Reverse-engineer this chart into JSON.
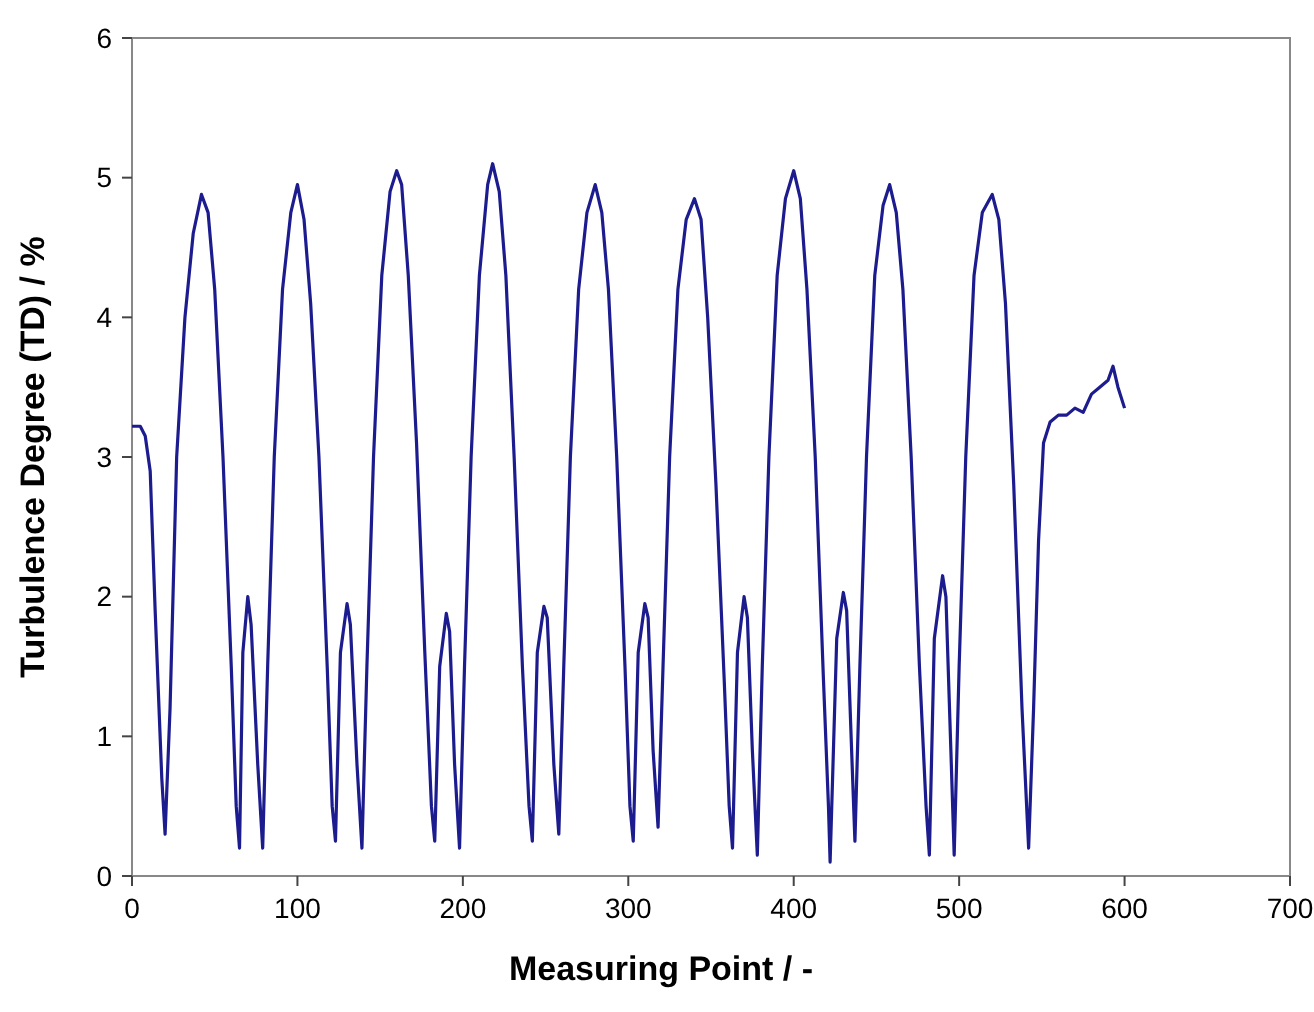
{
  "chart_data": {
    "type": "line",
    "xlabel": "Measuring Point / -",
    "ylabel": "Turbulence Degree (TD) / %",
    "xlim": [
      0,
      700
    ],
    "xticks": [
      0,
      100,
      200,
      300,
      400,
      500,
      600,
      700
    ],
    "ylim": [
      0,
      6
    ],
    "yticks": [
      0,
      1,
      2,
      3,
      4,
      5,
      6
    ],
    "grid": false,
    "marker": "none",
    "line_style": "solid",
    "series": [
      {
        "color": "#1c1c8e",
        "x": [
          0,
          5,
          8,
          11,
          14,
          18,
          20,
          23,
          27,
          32,
          37,
          42,
          46,
          50,
          55,
          60,
          63,
          65,
          67,
          70,
          72,
          76,
          79,
          82,
          86,
          91,
          96,
          100,
          104,
          108,
          113,
          118,
          121,
          123,
          126,
          130,
          132,
          136,
          139,
          142,
          146,
          151,
          156,
          160,
          163,
          167,
          172,
          177,
          181,
          183,
          186,
          190,
          192,
          195,
          198,
          201,
          205,
          210,
          215,
          218,
          222,
          226,
          231,
          236,
          240,
          242,
          245,
          249,
          251,
          255,
          258,
          261,
          265,
          270,
          275,
          280,
          284,
          288,
          293,
          298,
          301,
          303,
          306,
          310,
          312,
          315,
          318,
          321,
          325,
          330,
          335,
          340,
          344,
          348,
          353,
          358,
          361,
          363,
          366,
          370,
          372,
          375,
          378,
          381,
          385,
          390,
          395,
          400,
          404,
          408,
          413,
          418,
          421,
          422,
          426,
          430,
          432,
          435,
          437,
          440,
          444,
          449,
          454,
          458,
          462,
          466,
          471,
          476,
          480,
          482,
          485,
          490,
          492,
          495,
          497,
          500,
          504,
          509,
          514,
          520,
          524,
          528,
          533,
          538,
          542,
          545,
          548,
          551,
          555,
          560,
          565,
          570,
          575,
          580,
          585,
          590,
          593,
          596,
          600
        ],
        "values": [
          3.22,
          3.22,
          3.15,
          2.9,
          1.9,
          0.7,
          0.3,
          1.2,
          3.0,
          4.0,
          4.6,
          4.88,
          4.75,
          4.2,
          3.0,
          1.5,
          0.5,
          0.2,
          1.6,
          2.0,
          1.8,
          0.8,
          0.2,
          1.5,
          3.0,
          4.2,
          4.75,
          4.95,
          4.7,
          4.1,
          3.0,
          1.5,
          0.5,
          0.25,
          1.6,
          1.95,
          1.8,
          0.8,
          0.2,
          1.5,
          3.0,
          4.3,
          4.9,
          5.05,
          4.95,
          4.3,
          3.1,
          1.6,
          0.5,
          0.25,
          1.5,
          1.88,
          1.75,
          0.8,
          0.2,
          1.5,
          3.0,
          4.3,
          4.95,
          5.1,
          4.9,
          4.3,
          3.0,
          1.5,
          0.5,
          0.25,
          1.6,
          1.93,
          1.85,
          0.8,
          0.3,
          1.5,
          3.0,
          4.2,
          4.75,
          4.95,
          4.75,
          4.2,
          3.0,
          1.5,
          0.5,
          0.25,
          1.6,
          1.95,
          1.85,
          0.9,
          0.35,
          1.5,
          3.0,
          4.2,
          4.7,
          4.85,
          4.7,
          4.0,
          2.8,
          1.4,
          0.5,
          0.2,
          1.6,
          2.0,
          1.85,
          0.9,
          0.15,
          1.5,
          3.0,
          4.3,
          4.85,
          5.05,
          4.85,
          4.2,
          3.0,
          1.4,
          0.5,
          0.1,
          1.7,
          2.03,
          1.9,
          0.9,
          0.25,
          1.5,
          3.0,
          4.3,
          4.8,
          4.95,
          4.75,
          4.2,
          3.0,
          1.5,
          0.5,
          0.15,
          1.7,
          2.15,
          2.0,
          0.9,
          0.15,
          1.5,
          3.0,
          4.3,
          4.75,
          4.88,
          4.7,
          4.1,
          2.8,
          1.2,
          0.2,
          1.2,
          2.4,
          3.1,
          3.25,
          3.3,
          3.3,
          3.35,
          3.32,
          3.45,
          3.5,
          3.55,
          3.65,
          3.5,
          3.35
        ]
      }
    ]
  }
}
